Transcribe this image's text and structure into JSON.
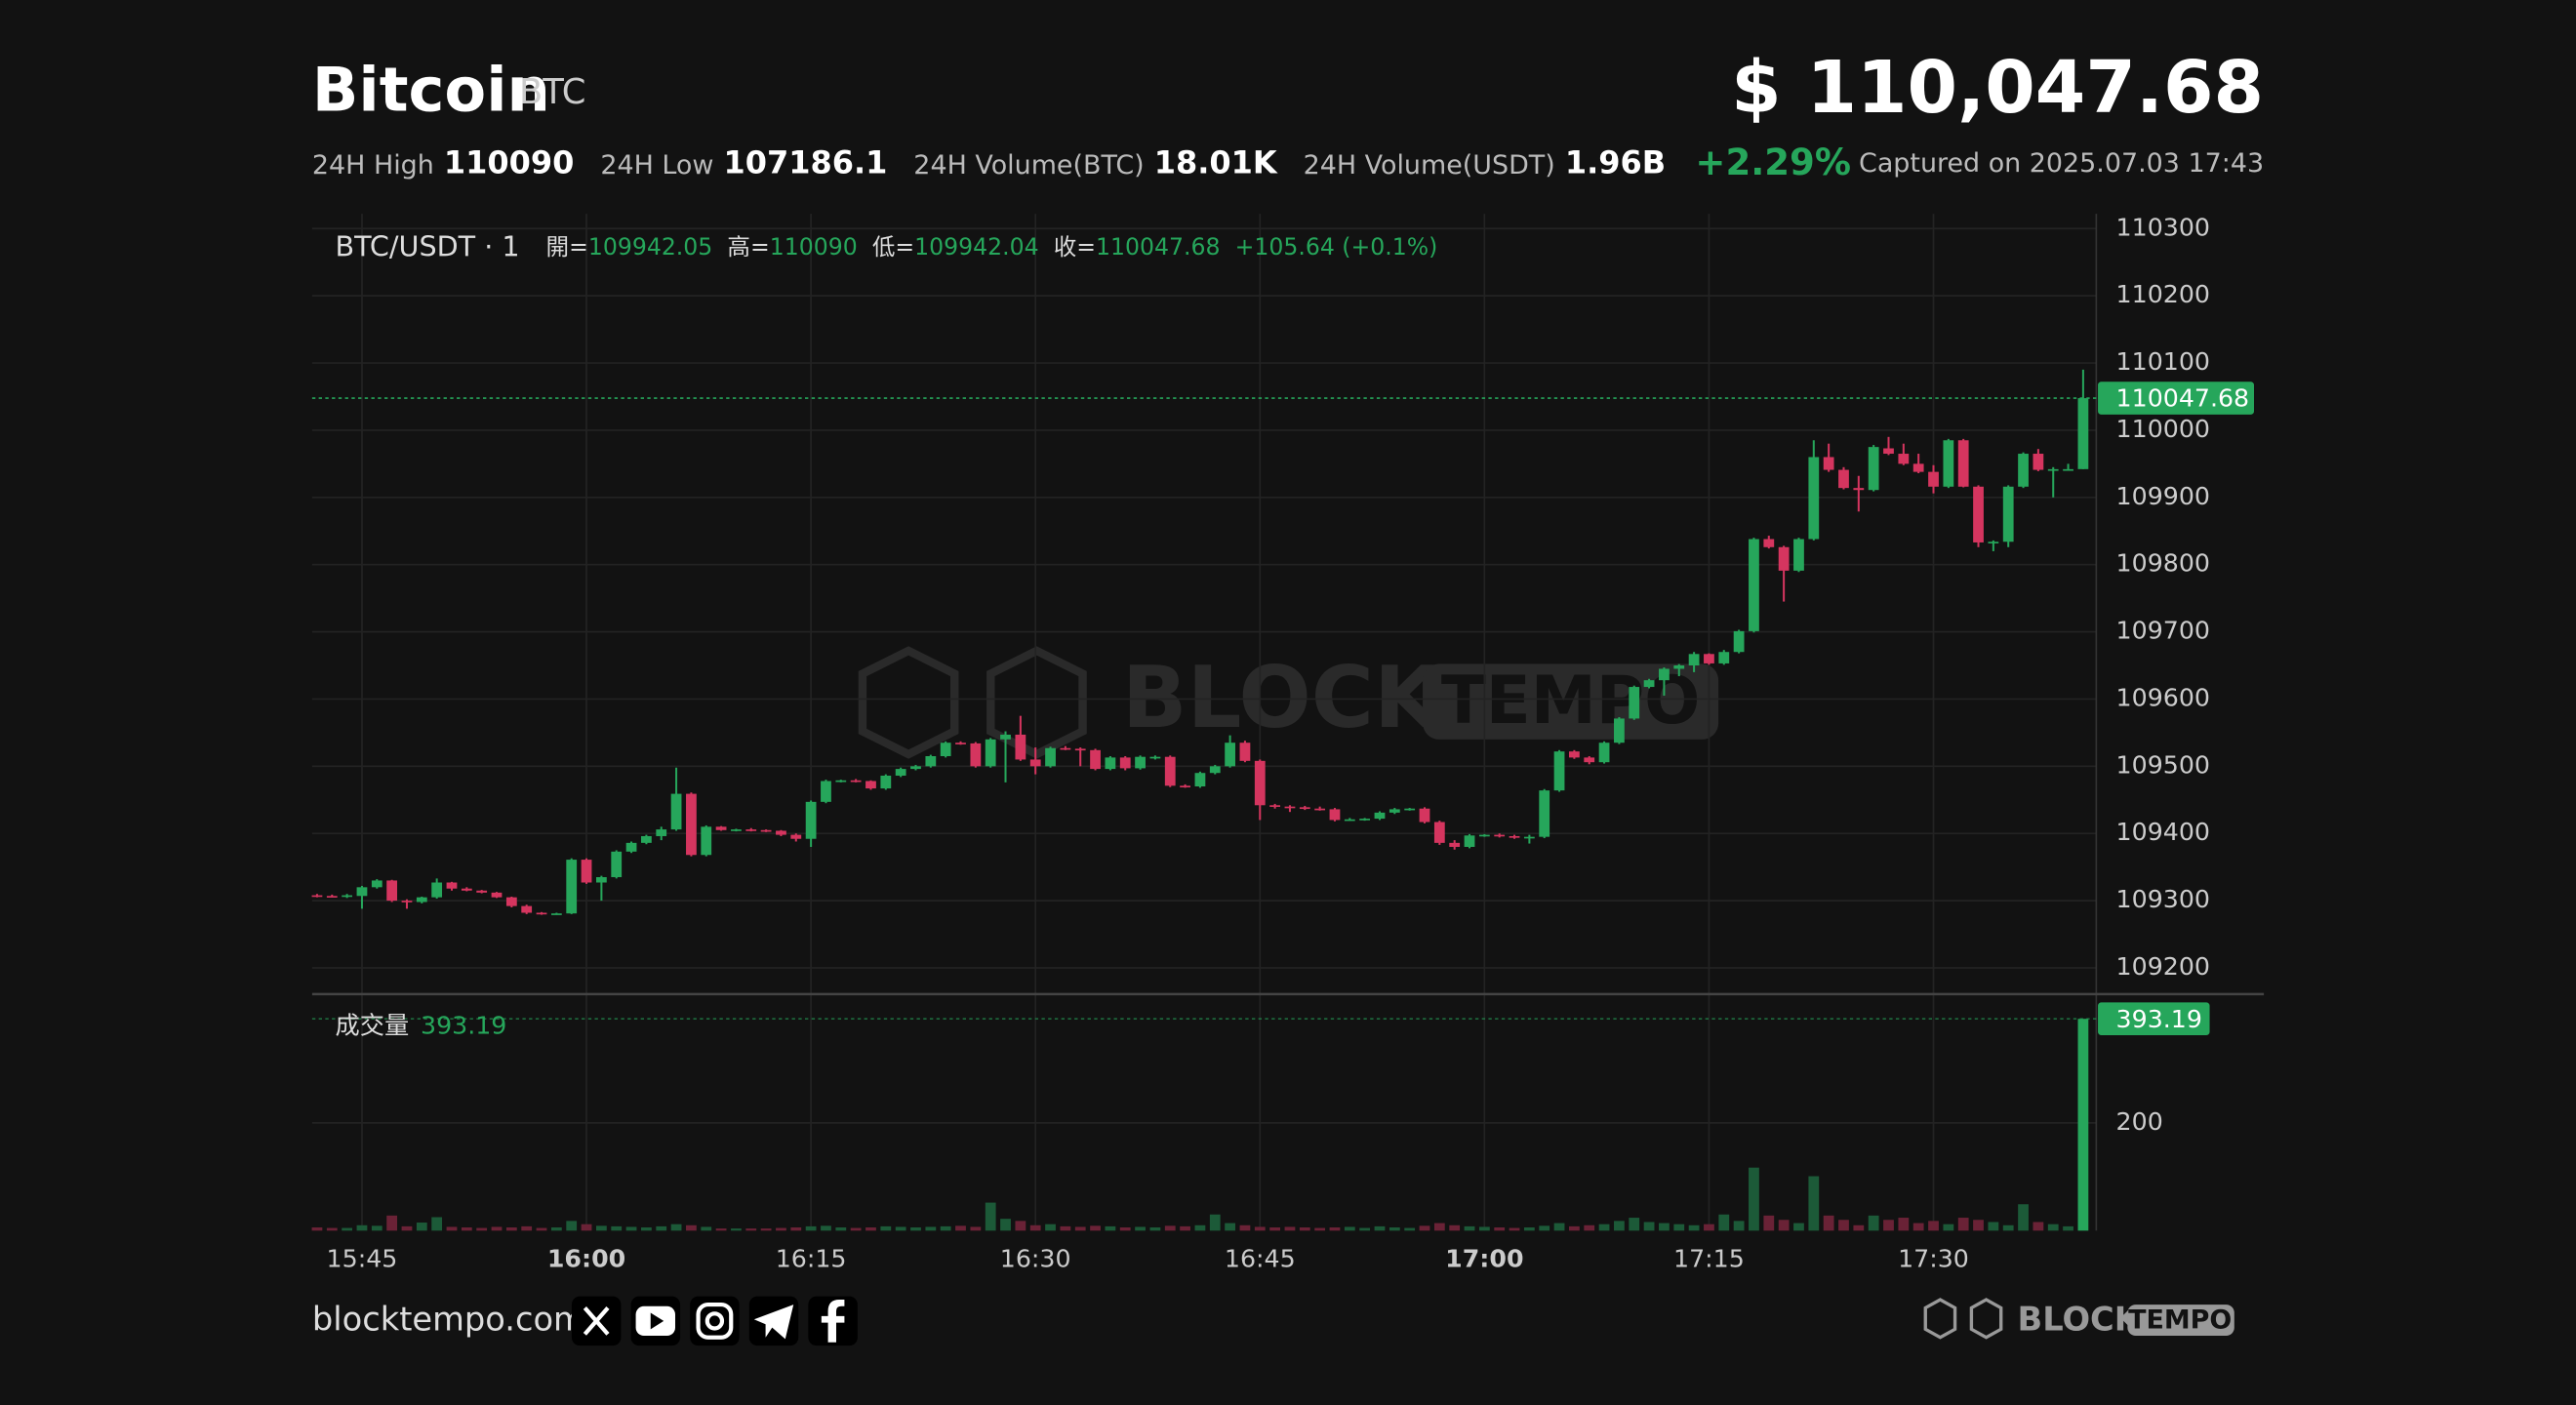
{
  "header": {
    "title": "Bitcoin",
    "symbol": "BTC",
    "price": "$ 110,047.68",
    "stats": [
      {
        "label": "24H High",
        "value": "110090"
      },
      {
        "label": "24H Low",
        "value": "107186.1"
      },
      {
        "label": "24H Volume(BTC)",
        "value": "18.01K"
      },
      {
        "label": "24H Volume(USDT)",
        "value": "1.96B"
      }
    ],
    "change": "+2.29%",
    "captured": "Captured on 2025.07.03 17:43"
  },
  "chart_data": {
    "type": "candlestick",
    "title": "BTC/USDT · 1",
    "legend": [
      {
        "label": "開=",
        "value": "109942.05"
      },
      {
        "label": "高=",
        "value": "110090"
      },
      {
        "label": "低=",
        "value": "109942.04"
      },
      {
        "label": "收=",
        "value": "110047.68"
      }
    ],
    "change_label": "+105.64 (+0.1%)",
    "x": [
      "15:42",
      "15:43",
      "15:44",
      "15:45",
      "15:46",
      "15:47",
      "15:48",
      "15:49",
      "15:50",
      "15:51",
      "15:52",
      "15:53",
      "15:54",
      "15:55",
      "15:56",
      "15:57",
      "15:58",
      "15:59",
      "16:00",
      "16:01",
      "16:02",
      "16:03",
      "16:04",
      "16:05",
      "16:06",
      "16:07",
      "16:08",
      "16:09",
      "16:10",
      "16:11",
      "16:12",
      "16:13",
      "16:14",
      "16:15",
      "16:16",
      "16:17",
      "16:18",
      "16:19",
      "16:20",
      "16:21",
      "16:22",
      "16:23",
      "16:24",
      "16:25",
      "16:26",
      "16:27",
      "16:28",
      "16:29",
      "16:30",
      "16:31",
      "16:32",
      "16:33",
      "16:34",
      "16:35",
      "16:36",
      "16:37",
      "16:38",
      "16:39",
      "16:40",
      "16:41",
      "16:42",
      "16:43",
      "16:44",
      "16:45",
      "16:46",
      "16:47",
      "16:48",
      "16:49",
      "16:50",
      "16:51",
      "16:52",
      "16:53",
      "16:54",
      "16:55",
      "16:56",
      "16:57",
      "16:58",
      "16:59",
      "17:00",
      "17:01",
      "17:02",
      "17:03",
      "17:04",
      "17:05",
      "17:06",
      "17:07",
      "17:08",
      "17:09",
      "17:10",
      "17:11",
      "17:12",
      "17:13",
      "17:14",
      "17:15",
      "17:16",
      "17:17",
      "17:18",
      "17:19",
      "17:20",
      "17:21",
      "17:22",
      "17:23",
      "17:24",
      "17:25",
      "17:26",
      "17:27",
      "17:28",
      "17:29",
      "17:30",
      "17:31",
      "17:32",
      "17:33",
      "17:34",
      "17:35",
      "17:36",
      "17:37",
      "17:38",
      "17:39",
      "17:40"
    ],
    "open": [
      109308,
      109307,
      109306,
      109307,
      109320,
      109330,
      109300,
      109298,
      109305,
      109327,
      109318,
      109315,
      109312,
      109305,
      109292,
      109282,
      109280,
      109281,
      109361,
      109327,
      109335,
      109373,
      109386,
      109396,
      109406,
      109459,
      109368,
      109410,
      109405,
      109406,
      109405,
      109404,
      109398,
      109392,
      109447,
      109478,
      109479,
      109478,
      109467,
      109486,
      109496,
      109500,
      109515,
      109535,
      109534,
      109500,
      109540,
      109547,
      109510,
      109500,
      109527,
      109526,
      109524,
      109496,
      109513,
      109497,
      109513,
      109514,
      109471,
      109470,
      109490,
      109500,
      109535,
      109508,
      109442,
      109440,
      109439,
      109437,
      109436,
      109420,
      109421,
      109422,
      109431,
      109436,
      109437,
      109417,
      109386,
      109380,
      109397,
      109398,
      109396,
      109394,
      109395,
      109464,
      109522,
      109513,
      109506,
      109535,
      109571,
      109618,
      109628,
      109645,
      109650,
      109667,
      109653,
      109670,
      109701,
      109838,
      109826,
      109791,
      109838,
      109960,
      109941,
      109914,
      109911,
      109973,
      109965,
      109950,
      109938,
      109916,
      109985,
      109916,
      109833,
      109834,
      109916,
      109965,
      109941,
      109942,
      109942.05
    ],
    "high": [
      109310,
      109309,
      109310,
      109322,
      109332,
      109331,
      109302,
      109306,
      109333,
      109328,
      109320,
      109316,
      109313,
      109306,
      109294,
      109283,
      109282,
      109363,
      109363,
      109337,
      109375,
      109388,
      109398,
      109410,
      109498,
      109461,
      109412,
      109411,
      109407,
      109408,
      109406,
      109405,
      109400,
      109449,
      109480,
      109480,
      109481,
      109479,
      109488,
      109498,
      109502,
      109517,
      109537,
      109537,
      109536,
      109542,
      109552,
      109575,
      109528,
      109529,
      109530,
      109528,
      109526,
      109515,
      109515,
      109516,
      109516,
      109516,
      109473,
      109492,
      109502,
      109546,
      109538,
      109510,
      109444,
      109442,
      109441,
      109440,
      109438,
      109423,
      109423,
      109433,
      109438,
      109438,
      109439,
      109419,
      109390,
      109399,
      109399,
      109400,
      109398,
      109398,
      109466,
      109524,
      109524,
      109515,
      109537,
      109573,
      109620,
      109630,
      109647,
      109652,
      109670,
      109668,
      109673,
      109703,
      109840,
      109843,
      109828,
      109840,
      109985,
      109980,
      109945,
      109932,
      109978,
      109990,
      109980,
      109965,
      109948,
      109987,
      109987,
      109918,
      109836,
      109918,
      109967,
      109972,
      109945,
      109950,
      110090
    ],
    "low": [
      109305,
      109305,
      109304,
      109288,
      109318,
      109298,
      109288,
      109296,
      109303,
      109315,
      109314,
      109311,
      109304,
      109290,
      109280,
      109279,
      109279,
      109280,
      109325,
      109300,
      109333,
      109371,
      109384,
      109390,
      109404,
      109366,
      109366,
      109404,
      109403,
      109403,
      109402,
      109396,
      109388,
      109380,
      109445,
      109476,
      109476,
      109465,
      109465,
      109484,
      109494,
      109498,
      109513,
      109532,
      109498,
      109498,
      109476,
      109508,
      109488,
      109498,
      109524,
      109500,
      109494,
      109494,
      109494,
      109495,
      109510,
      109469,
      109468,
      109468,
      109488,
      109498,
      109506,
      109420,
      109437,
      109432,
      109435,
      109434,
      109418,
      109419,
      109419,
      109420,
      109429,
      109434,
      109415,
      109383,
      109376,
      109378,
      109395,
      109394,
      109392,
      109385,
      109393,
      109462,
      109511,
      109503,
      109504,
      109533,
      109569,
      109616,
      109605,
      109634,
      109640,
      109651,
      109651,
      109668,
      109699,
      109824,
      109745,
      109789,
      109836,
      109938,
      109912,
      109879,
      109909,
      109963,
      109948,
      109936,
      109906,
      109914,
      109915,
      109826,
      109820,
      109826,
      109914,
      109939,
      109900,
      109940,
      109942.04
    ],
    "close": [
      109307,
      109306,
      109308,
      109320,
      109330,
      109300,
      109298,
      109305,
      109327,
      109318,
      109315,
      109312,
      109305,
      109292,
      109282,
      109280,
      109281,
      109361,
      109327,
      109335,
      109373,
      109386,
      109396,
      109406,
      109459,
      109368,
      109410,
      109405,
      109406,
      109405,
      109404,
      109398,
      109392,
      109447,
      109478,
      109479,
      109478,
      109467,
      109486,
      109496,
      109500,
      109515,
      109535,
      109534,
      109500,
      109540,
      109547,
      109510,
      109500,
      109527,
      109526,
      109524,
      109496,
      109513,
      109497,
      109514,
      109514,
      109471,
      109470,
      109490,
      109500,
      109535,
      109508,
      109442,
      109440,
      109439,
      109437,
      109436,
      109420,
      109421,
      109422,
      109431,
      109436,
      109437,
      109417,
      109386,
      109380,
      109397,
      109398,
      109396,
      109394,
      109395,
      109464,
      109522,
      109513,
      109506,
      109535,
      109571,
      109618,
      109628,
      109645,
      109650,
      109667,
      109653,
      109670,
      109701,
      109838,
      109826,
      109791,
      109838,
      109960,
      109941,
      109914,
      109911,
      109975,
      109965,
      109950,
      109938,
      109916,
      109985,
      109916,
      109833,
      109834,
      109916,
      109965,
      109941,
      109942,
      109942,
      110047.68
    ],
    "ylim": [
      109161,
      110322
    ],
    "yticks": [
      109200,
      109300,
      109400,
      109500,
      109600,
      109700,
      109800,
      109900,
      110000,
      110100,
      110200,
      110300
    ],
    "xticks": [
      "15:45",
      "16:00",
      "16:15",
      "16:30",
      "16:45",
      "17:00",
      "17:15",
      "17:30"
    ],
    "grid": true,
    "up_color": "#26a65b",
    "down_color": "#d5355f",
    "volume": {
      "name": "成交量",
      "values": [
        6,
        5,
        5,
        10,
        9,
        28,
        8,
        15,
        25,
        7,
        6,
        5,
        7,
        6,
        8,
        5,
        6,
        18,
        12,
        9,
        8,
        7,
        6,
        8,
        12,
        10,
        7,
        4,
        4,
        4,
        4,
        5,
        6,
        8,
        9,
        6,
        5,
        6,
        8,
        7,
        6,
        7,
        8,
        9,
        7,
        52,
        22,
        18,
        10,
        12,
        8,
        7,
        9,
        8,
        6,
        7,
        6,
        9,
        8,
        10,
        30,
        14,
        10,
        7,
        6,
        7,
        6,
        5,
        6,
        7,
        5,
        8,
        6,
        5,
        9,
        14,
        10,
        8,
        7,
        6,
        5,
        6,
        9,
        14,
        8,
        10,
        12,
        18,
        24,
        16,
        14,
        12,
        10,
        12,
        30,
        18,
        117,
        28,
        20,
        14,
        101,
        28,
        20,
        10,
        28,
        20,
        24,
        14,
        18,
        12,
        24,
        20,
        16,
        10,
        49,
        16,
        12,
        8,
        393.19
      ],
      "ylim": [
        0,
        433
      ],
      "yticks": [
        200
      ],
      "up_color": "#1c5a38",
      "down_color": "#6a2236"
    }
  },
  "watermark": {
    "left": "BLOCK",
    "right": "TEMPO"
  },
  "footer": {
    "site": "blocktempo.com",
    "logo_left": "BLOCK",
    "logo_right": "TEMPO"
  }
}
